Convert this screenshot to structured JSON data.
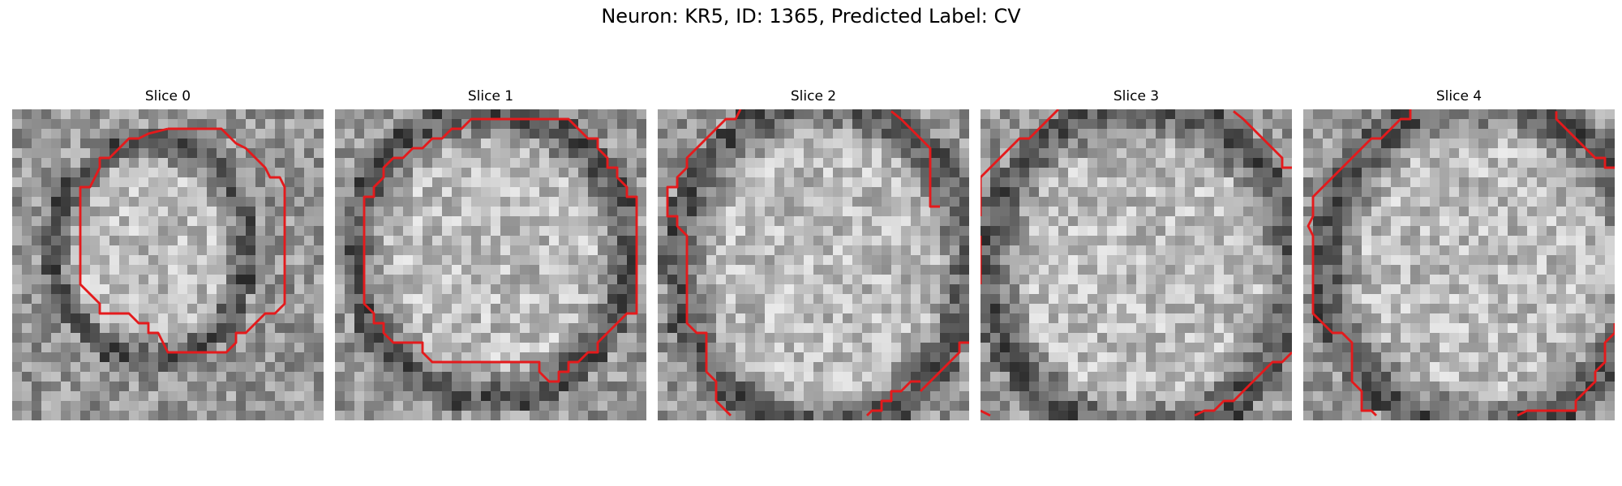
{
  "figure": {
    "title": "Neuron: KR5, ID: 1365, Predicted Label: CV"
  },
  "panels": [
    {
      "title": "Slice 0",
      "image": "grayscale-microscopy-slice-0",
      "contour_color": "#e41a1c"
    },
    {
      "title": "Slice 1",
      "image": "grayscale-microscopy-slice-1",
      "contour_color": "#e41a1c"
    },
    {
      "title": "Slice 2",
      "image": "grayscale-microscopy-slice-2",
      "contour_color": "#e41a1c"
    },
    {
      "title": "Slice 3",
      "image": "grayscale-microscopy-slice-3",
      "contour_color": "#e41a1c"
    },
    {
      "title": "Slice 4",
      "image": "grayscale-microscopy-slice-4",
      "contour_color": "#e41a1c"
    }
  ]
}
